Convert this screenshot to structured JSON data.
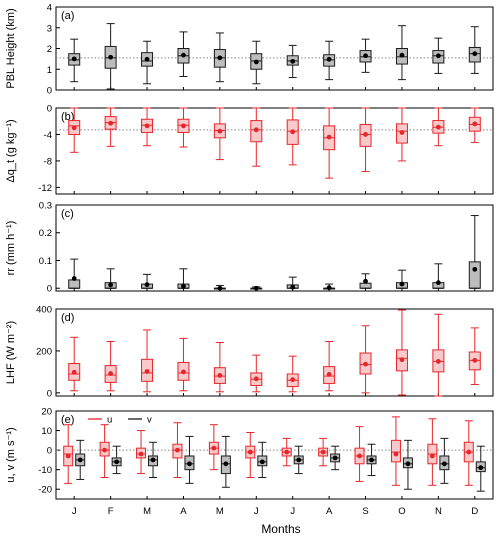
{
  "x_label": "Months",
  "months": [
    "J",
    "F",
    "M",
    "A",
    "M",
    "J",
    "J",
    "A",
    "S",
    "O",
    "N",
    "D"
  ],
  "colors": {
    "black": "#1a1a1a",
    "red": "#e8252a",
    "gray_fill": "#bdbdbd",
    "pink_fill": "#f7c9cb",
    "grid": "#888888"
  },
  "chart_data": [
    {
      "type": "box",
      "panel_label": "(a)",
      "ylabel": "PBL Height (km)",
      "ylim": [
        0,
        4
      ],
      "yticks": [
        0,
        1,
        2,
        3,
        4
      ],
      "ref_line": 1.55,
      "series": [
        {
          "name": "PBL Height",
          "color": "black",
          "boxes": [
            {
              "min": 0.4,
              "q1": 1.2,
              "median": 1.45,
              "q3": 1.75,
              "max": 2.45,
              "mean": 1.5
            },
            {
              "min": 0.05,
              "q1": 1.05,
              "median": 1.55,
              "q3": 2.1,
              "max": 3.2,
              "mean": 1.58
            },
            {
              "min": 0.3,
              "q1": 1.15,
              "median": 1.4,
              "q3": 1.8,
              "max": 2.35,
              "mean": 1.48
            },
            {
              "min": 0.65,
              "q1": 1.3,
              "median": 1.65,
              "q3": 2.0,
              "max": 2.8,
              "mean": 1.68
            },
            {
              "min": 0.4,
              "q1": 1.1,
              "median": 1.55,
              "q3": 1.95,
              "max": 2.75,
              "mean": 1.55
            },
            {
              "min": 0.3,
              "q1": 1.0,
              "median": 1.4,
              "q3": 1.75,
              "max": 2.35,
              "mean": 1.35
            },
            {
              "min": 0.6,
              "q1": 1.2,
              "median": 1.4,
              "q3": 1.65,
              "max": 2.15,
              "mean": 1.38
            },
            {
              "min": 0.5,
              "q1": 1.15,
              "median": 1.45,
              "q3": 1.7,
              "max": 2.35,
              "mean": 1.48
            },
            {
              "min": 0.85,
              "q1": 1.35,
              "median": 1.6,
              "q3": 1.9,
              "max": 2.45,
              "mean": 1.65
            },
            {
              "min": 0.5,
              "q1": 1.25,
              "median": 1.6,
              "q3": 2.0,
              "max": 3.1,
              "mean": 1.68
            },
            {
              "min": 0.8,
              "q1": 1.3,
              "median": 1.65,
              "q3": 1.9,
              "max": 2.5,
              "mean": 1.65
            },
            {
              "min": 0.8,
              "q1": 1.35,
              "median": 1.75,
              "q3": 2.05,
              "max": 3.05,
              "mean": 1.75
            }
          ]
        }
      ]
    },
    {
      "type": "box",
      "panel_label": "(b)",
      "ylabel": "Δq_t (g kg⁻¹)",
      "ylim": [
        -13,
        0
      ],
      "yticks": [
        0,
        -4,
        -8,
        -12
      ],
      "ref_line": -3.3,
      "series": [
        {
          "name": "Δq_t",
          "color": "red",
          "boxes": [
            {
              "min": -6.7,
              "q1": -4.0,
              "median": -2.7,
              "q3": -1.9,
              "max": 0.0,
              "mean": -3.0
            },
            {
              "min": -5.8,
              "q1": -3.2,
              "median": -2.2,
              "q3": -1.3,
              "max": 0.0,
              "mean": -2.3
            },
            {
              "min": -5.7,
              "q1": -3.7,
              "median": -2.6,
              "q3": -1.7,
              "max": 0.0,
              "mean": -2.7
            },
            {
              "min": -5.9,
              "q1": -3.7,
              "median": -2.6,
              "q3": -1.7,
              "max": 0.0,
              "mean": -2.7
            },
            {
              "min": -7.8,
              "q1": -4.5,
              "median": -3.4,
              "q3": -2.4,
              "max": 0.0,
              "mean": -3.5
            },
            {
              "min": -8.8,
              "q1": -5.1,
              "median": -3.3,
              "q3": -1.9,
              "max": 0.0,
              "mean": -3.3
            },
            {
              "min": -8.6,
              "q1": -5.5,
              "median": -3.5,
              "q3": -1.8,
              "max": 0.0,
              "mean": -3.6
            },
            {
              "min": -10.6,
              "q1": -6.3,
              "median": -4.5,
              "q3": -2.7,
              "max": 0.0,
              "mean": -4.4
            },
            {
              "min": -9.6,
              "q1": -5.8,
              "median": -4.0,
              "q3": -2.5,
              "max": 0.0,
              "mean": -4.0
            },
            {
              "min": -8.0,
              "q1": -5.3,
              "median": -3.5,
              "q3": -2.4,
              "max": 0.0,
              "mean": -3.7
            },
            {
              "min": -5.7,
              "q1": -3.8,
              "median": -2.9,
              "q3": -1.9,
              "max": 0.0,
              "mean": -2.9
            },
            {
              "min": -5.2,
              "q1": -3.5,
              "median": -2.5,
              "q3": -1.4,
              "max": 0.0,
              "mean": -2.4
            }
          ]
        }
      ]
    },
    {
      "type": "box",
      "panel_label": "(c)",
      "ylabel": "rr (mm h⁻¹)",
      "ylim": [
        -0.01,
        0.3
      ],
      "yticks": [
        0,
        0.1,
        0.2,
        0.3
      ],
      "ref_line": null,
      "series": [
        {
          "name": "rr",
          "color": "black",
          "boxes": [
            {
              "min": 0.0,
              "q1": 0.0,
              "median": 0.0,
              "q3": 0.03,
              "max": 0.105,
              "mean": 0.035
            },
            {
              "min": 0.0,
              "q1": 0.0,
              "median": 0.0,
              "q3": 0.02,
              "max": 0.07,
              "mean": 0.012
            },
            {
              "min": 0.0,
              "q1": 0.0,
              "median": 0.0,
              "q3": 0.015,
              "max": 0.05,
              "mean": 0.013
            },
            {
              "min": 0.0,
              "q1": 0.0,
              "median": 0.0,
              "q3": 0.015,
              "max": 0.07,
              "mean": 0.007
            },
            {
              "min": 0.0,
              "q1": 0.0,
              "median": 0.0,
              "q3": 0.0,
              "max": 0.01,
              "mean": 0.0
            },
            {
              "min": 0.0,
              "q1": 0.0,
              "median": 0.0,
              "q3": 0.0,
              "max": 0.005,
              "mean": 0.0
            },
            {
              "min": 0.0,
              "q1": 0.0,
              "median": 0.0,
              "q3": 0.012,
              "max": 0.04,
              "mean": 0.004
            },
            {
              "min": 0.0,
              "q1": 0.0,
              "median": 0.0,
              "q3": 0.0,
              "max": 0.015,
              "mean": 0.002
            },
            {
              "min": 0.0,
              "q1": 0.0,
              "median": 0.0,
              "q3": 0.018,
              "max": 0.052,
              "mean": 0.025
            },
            {
              "min": 0.0,
              "q1": 0.0,
              "median": 0.0,
              "q3": 0.02,
              "max": 0.065,
              "mean": 0.015
            },
            {
              "min": 0.0,
              "q1": 0.0,
              "median": 0.0,
              "q3": 0.02,
              "max": 0.088,
              "mean": 0.02
            },
            {
              "min": 0.0,
              "q1": 0.0,
              "median": 0.0,
              "q3": 0.095,
              "max": 0.262,
              "mean": 0.068
            }
          ]
        }
      ]
    },
    {
      "type": "box",
      "panel_label": "(d)",
      "ylabel": "LHF (W m⁻²)",
      "ylim": [
        -15,
        400
      ],
      "yticks": [
        0,
        200,
        400
      ],
      "ref_line": null,
      "series": [
        {
          "name": "LHF",
          "color": "red",
          "boxes": [
            {
              "min": 10,
              "q1": 60,
              "median": 90,
              "q3": 140,
              "max": 265,
              "mean": 98
            },
            {
              "min": 10,
              "q1": 50,
              "median": 85,
              "q3": 130,
              "max": 245,
              "mean": 92
            },
            {
              "min": 5,
              "q1": 55,
              "median": 95,
              "q3": 160,
              "max": 300,
              "mean": 102
            },
            {
              "min": 10,
              "q1": 60,
              "median": 95,
              "q3": 145,
              "max": 260,
              "mean": 100
            },
            {
              "min": 5,
              "q1": 45,
              "median": 80,
              "q3": 120,
              "max": 240,
              "mean": 83
            },
            {
              "min": 5,
              "q1": 35,
              "median": 65,
              "q3": 95,
              "max": 180,
              "mean": 67
            },
            {
              "min": 5,
              "q1": 30,
              "median": 60,
              "q3": 90,
              "max": 175,
              "mean": 63
            },
            {
              "min": 10,
              "q1": 45,
              "median": 80,
              "q3": 125,
              "max": 245,
              "mean": 88
            },
            {
              "min": 0,
              "q1": 90,
              "median": 135,
              "q3": 190,
              "max": 320,
              "mean": 137
            },
            {
              "min": -10,
              "q1": 105,
              "median": 165,
              "q3": 205,
              "max": 395,
              "mean": 158
            },
            {
              "min": -15,
              "q1": 100,
              "median": 150,
              "q3": 205,
              "max": 375,
              "mean": 150
            },
            {
              "min": 40,
              "q1": 110,
              "median": 155,
              "q3": 195,
              "max": 310,
              "mean": 155
            }
          ]
        }
      ]
    },
    {
      "type": "box",
      "panel_label": "(e)",
      "ylabel": "u, v (m s⁻¹)",
      "ylim": [
        -25,
        20
      ],
      "yticks": [
        -20,
        -10,
        0,
        10,
        20
      ],
      "ref_line": 0,
      "legend": [
        "u",
        "v"
      ],
      "series": [
        {
          "name": "u",
          "color": "red",
          "boxes": [
            {
              "min": -17,
              "q1": -8,
              "median": -2,
              "q3": 2,
              "max": 13,
              "mean": -3
            },
            {
              "min": -14,
              "q1": -3,
              "median": 0,
              "q3": 4,
              "max": 13,
              "mean": 0
            },
            {
              "min": -12,
              "q1": -4,
              "median": -2,
              "q3": 1,
              "max": 10,
              "mean": -2
            },
            {
              "min": -14,
              "q1": -4,
              "median": 0,
              "q3": 3,
              "max": 14,
              "mean": 0
            },
            {
              "min": -10,
              "q1": -2,
              "median": 1,
              "q3": 4,
              "max": 13,
              "mean": 1
            },
            {
              "min": -14,
              "q1": -4,
              "median": -1,
              "q3": 2,
              "max": 9,
              "mean": -1
            },
            {
              "min": -8,
              "q1": -3,
              "median": -1,
              "q3": 1,
              "max": 6,
              "mean": -1
            },
            {
              "min": -8,
              "q1": -3,
              "median": -1,
              "q3": 1,
              "max": 6,
              "mean": -1
            },
            {
              "min": -16,
              "q1": -7,
              "median": -3,
              "q3": 1,
              "max": 12,
              "mean": -3
            },
            {
              "min": -18,
              "q1": -6,
              "median": -1,
              "q3": 5,
              "max": 17,
              "mean": -2
            },
            {
              "min": -18,
              "q1": -7,
              "median": -2,
              "q3": 3,
              "max": 16,
              "mean": -3
            },
            {
              "min": -18,
              "q1": -6,
              "median": -1,
              "q3": 4,
              "max": 15,
              "mean": -1
            }
          ]
        },
        {
          "name": "v",
          "color": "black",
          "boxes": [
            {
              "min": -15,
              "q1": -8,
              "median": -5,
              "q3": -2,
              "max": 5,
              "mean": -5
            },
            {
              "min": -12,
              "q1": -8,
              "median": -6,
              "q3": -4,
              "max": 2,
              "mean": -6
            },
            {
              "min": -14,
              "q1": -8,
              "median": -5,
              "q3": -3,
              "max": 4,
              "mean": -5
            },
            {
              "min": -17,
              "q1": -10,
              "median": -7,
              "q3": -3,
              "max": 7,
              "mean": -7
            },
            {
              "min": -19,
              "q1": -12,
              "median": -7,
              "q3": -3,
              "max": 7,
              "mean": -7
            },
            {
              "min": -14,
              "q1": -8,
              "median": -6,
              "q3": -3,
              "max": 4,
              "mean": -6
            },
            {
              "min": -12,
              "q1": -7,
              "median": -5,
              "q3": -3,
              "max": 2,
              "mean": -5
            },
            {
              "min": -10,
              "q1": -6,
              "median": -4,
              "q3": -2,
              "max": 2,
              "mean": -4
            },
            {
              "min": -13,
              "q1": -7,
              "median": -5,
              "q3": -3,
              "max": 3,
              "mean": -5
            },
            {
              "min": -20,
              "q1": -9,
              "median": -7,
              "q3": -4,
              "max": 5,
              "mean": -7
            },
            {
              "min": -17,
              "q1": -10,
              "median": -7,
              "q3": -3,
              "max": 6,
              "mean": -7
            },
            {
              "min": -21,
              "q1": -11,
              "median": -9,
              "q3": -6,
              "max": 2,
              "mean": -9
            }
          ]
        }
      ]
    }
  ]
}
